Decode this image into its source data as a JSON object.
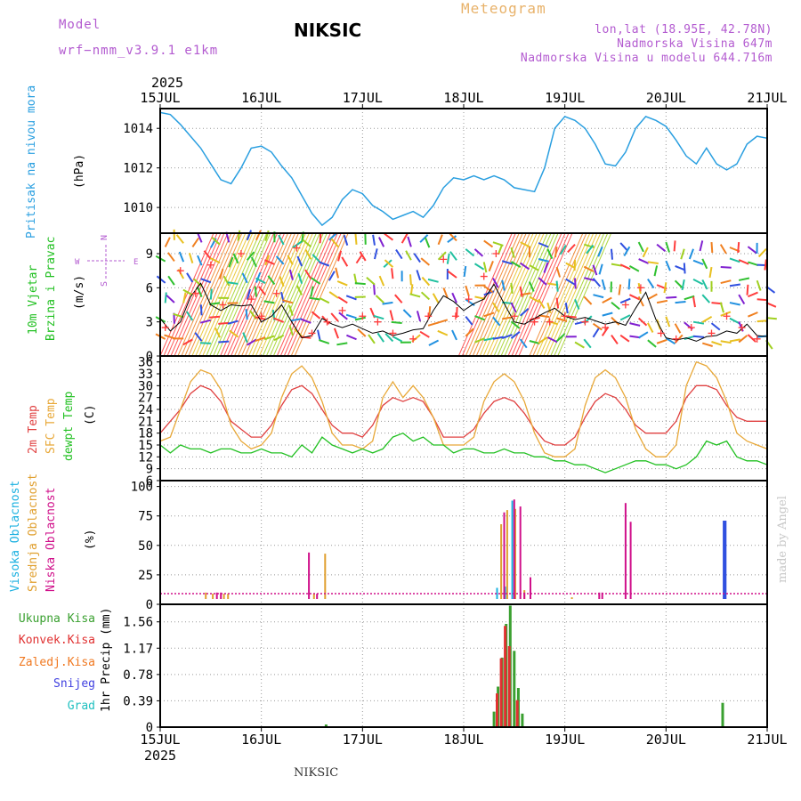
{
  "header": {
    "model_label": "Model",
    "model_run": "wrf−nmm_v3.9.1  e1km",
    "location": "NIKSIC",
    "chart_title": "Meteogram",
    "coords": "lon,lat (18.95E, 42.78N)",
    "elevation": "Nadmorska Visina 647m",
    "model_elevation": "Nadmorska Visina u modelu 644.716m",
    "year": "2025"
  },
  "footer": {
    "location": "NIKSIC",
    "credit": "made by Angel"
  },
  "colors": {
    "pressure": "#2a9fe0",
    "wind_speed": "#000000",
    "gust": "#ff3c3c",
    "temp_2m": "#e04040",
    "temp_sfc": "#e8a838",
    "temp_dewpt": "#22c022",
    "cloud_high": "#1ab0e0",
    "cloud_mid": "#e0a030",
    "cloud_low": "#d0108a",
    "precip_total": "#3aa030",
    "precip_conv": "#e03030",
    "precip_strat": "#f07820",
    "snow": "#4040e0",
    "hail": "#20c0c0"
  },
  "chart_data": [
    {
      "type": "line",
      "ylabel_left": "Pritisak na nivou mora",
      "unit": "(hPa)",
      "x_ticks": [
        "15JUL",
        "16JUL",
        "17JUL",
        "18JUL",
        "19JUL",
        "20JUL",
        "21JUL"
      ],
      "yticks": [
        1010,
        1012,
        1014
      ],
      "ylim": [
        1008.7,
        1015.0
      ],
      "series": [
        {
          "x": [
            0,
            0.1,
            0.2,
            0.3,
            0.4,
            0.5,
            0.6,
            0.7,
            0.8,
            0.9,
            1.0,
            1.1,
            1.2,
            1.3,
            1.4,
            1.5,
            1.6,
            1.7,
            1.8,
            1.9,
            2.0,
            2.1,
            2.2,
            2.3,
            2.4,
            2.5,
            2.6,
            2.7,
            2.8,
            2.9,
            3.0,
            3.1,
            3.2,
            3.3,
            3.4,
            3.5,
            3.6,
            3.7,
            3.8,
            3.9,
            4.0,
            4.1,
            4.2,
            4.3,
            4.4,
            4.5,
            4.6,
            4.7,
            4.8,
            4.9,
            5.0,
            5.1,
            5.2,
            5.3,
            5.4,
            5.5,
            5.6,
            5.7,
            5.8,
            5.9,
            6.0
          ],
          "values": [
            1014.8,
            1014.7,
            1014.2,
            1013.6,
            1013.0,
            1012.2,
            1011.4,
            1011.2,
            1012.0,
            1013.0,
            1013.1,
            1012.8,
            1012.1,
            1011.5,
            1010.6,
            1009.7,
            1009.1,
            1009.5,
            1010.4,
            1010.9,
            1010.7,
            1010.1,
            1009.8,
            1009.4,
            1009.6,
            1009.8,
            1009.5,
            1010.1,
            1011.0,
            1011.5,
            1011.4,
            1011.6,
            1011.4,
            1011.6,
            1011.4,
            1011.0,
            1010.9,
            1010.8,
            1012.0,
            1014.0,
            1014.6,
            1014.4,
            1014.0,
            1013.2,
            1012.2,
            1012.1,
            1012.8,
            1014.0,
            1014.6,
            1014.4,
            1014.1,
            1013.4,
            1012.6,
            1012.2,
            1013.0,
            1012.2,
            1011.9,
            1012.2,
            1013.2,
            1013.6,
            1013.5
          ]
        }
      ]
    },
    {
      "type": "line",
      "ylabel_left": "10m Vjetar Brzina i Pravac",
      "unit": "(m/s)",
      "compass": {
        "n": "N",
        "s": "S",
        "e": "E",
        "w": "W"
      },
      "yticks": [
        0,
        3,
        6,
        9
      ],
      "ylim": [
        0,
        10.8
      ],
      "series": [
        {
          "name": "speed",
          "x": [
            0,
            0.1,
            0.2,
            0.3,
            0.4,
            0.5,
            0.6,
            0.7,
            0.8,
            0.9,
            1.0,
            1.1,
            1.2,
            1.3,
            1.4,
            1.5,
            1.6,
            1.7,
            1.8,
            1.9,
            2.0,
            2.1,
            2.2,
            2.3,
            2.4,
            2.5,
            2.6,
            2.7,
            2.8,
            2.9,
            3.0,
            3.1,
            3.2,
            3.3,
            3.4,
            3.5,
            3.6,
            3.7,
            3.8,
            3.9,
            4.0,
            4.1,
            4.2,
            4.3,
            4.4,
            4.5,
            4.6,
            4.7,
            4.8,
            4.9,
            5.0,
            5.1,
            5.2,
            5.3,
            5.4,
            5.5,
            5.6,
            5.7,
            5.8,
            5.9,
            6.0
          ],
          "values": [
            3.3,
            2.2,
            3.0,
            5.2,
            6.4,
            4.5,
            4.0,
            4.5,
            4.4,
            4.5,
            3.0,
            3.5,
            4.5,
            3.0,
            1.6,
            1.8,
            3.3,
            2.8,
            2.5,
            2.8,
            2.4,
            2.0,
            2.2,
            1.8,
            2.0,
            2.3,
            2.4,
            4.0,
            5.3,
            4.8,
            4.0,
            4.6,
            5.0,
            6.3,
            4.6,
            3.0,
            2.8,
            3.3,
            3.8,
            4.2,
            3.5,
            3.2,
            3.4,
            3.1,
            2.8,
            3.0,
            2.7,
            4.2,
            5.6,
            3.2,
            1.6,
            1.4,
            1.6,
            1.3,
            1.7,
            1.8,
            2.2,
            2.0,
            2.8,
            1.8,
            1.7
          ]
        },
        {
          "name": "gusts",
          "x": [
            0.05,
            0.2,
            0.35,
            0.5,
            0.62,
            0.8,
            0.9,
            1.0,
            1.15,
            1.35,
            1.5,
            1.65,
            1.8,
            2.0,
            2.15,
            2.3,
            2.5,
            2.65,
            2.8,
            2.92,
            3.05,
            3.2,
            3.32,
            3.5,
            3.7,
            3.85,
            4.0,
            4.2,
            4.4,
            4.6,
            4.75,
            4.95,
            5.1,
            5.25,
            5.45,
            5.6,
            5.75,
            5.9
          ],
          "values": [
            2.5,
            7.5,
            5.5,
            8.0,
            4.5,
            9.0,
            5.0,
            3.5,
            5.5,
            9.5,
            2.0,
            3.0,
            4.0,
            3.5,
            3.0,
            2.0,
            1.5,
            3.5,
            8.5,
            3.5,
            5.0,
            7.0,
            9.0,
            3.5,
            3.0,
            3.0,
            3.5,
            3.0,
            2.5,
            4.5,
            6.0,
            2.0,
            1.5,
            2.5,
            2.0,
            3.5,
            2.5,
            1.5
          ]
        }
      ]
    },
    {
      "type": "line",
      "ylabel_left": [
        "2m Temp",
        "SFC Temp",
        "dewpt Temp"
      ],
      "unit": "(C)",
      "yticks": [
        6,
        9,
        12,
        15,
        18,
        21,
        24,
        27,
        30,
        33,
        36
      ],
      "ylim": [
        6,
        37.5
      ],
      "series": [
        {
          "name": "2m Temp",
          "x": [
            0,
            0.1,
            0.2,
            0.3,
            0.4,
            0.5,
            0.6,
            0.7,
            0.8,
            0.9,
            1.0,
            1.1,
            1.2,
            1.3,
            1.4,
            1.5,
            1.6,
            1.7,
            1.8,
            1.9,
            2.0,
            2.1,
            2.2,
            2.3,
            2.4,
            2.5,
            2.6,
            2.7,
            2.8,
            2.9,
            3.0,
            3.1,
            3.2,
            3.3,
            3.4,
            3.5,
            3.6,
            3.7,
            3.8,
            3.9,
            4.0,
            4.1,
            4.2,
            4.3,
            4.4,
            4.5,
            4.6,
            4.7,
            4.8,
            4.9,
            5.0,
            5.1,
            5.2,
            5.3,
            5.4,
            5.5,
            5.6,
            5.7,
            5.8,
            5.9,
            6.0
          ],
          "values": [
            18,
            21,
            24,
            28,
            30,
            29,
            26,
            21,
            19,
            17,
            17,
            20,
            25,
            29,
            30,
            28,
            24,
            20,
            18,
            18,
            17,
            20,
            25,
            27,
            26,
            27,
            26,
            22,
            17,
            17,
            17,
            19,
            23,
            26,
            27,
            26,
            23,
            19,
            16,
            15,
            15,
            17,
            22,
            26,
            28,
            27,
            24,
            20,
            18,
            18,
            18,
            21,
            27,
            30,
            30,
            29,
            25,
            22,
            21,
            21,
            21
          ]
        },
        {
          "name": "SFC Temp",
          "x": [
            0,
            0.1,
            0.2,
            0.3,
            0.4,
            0.5,
            0.6,
            0.7,
            0.8,
            0.9,
            1.0,
            1.1,
            1.2,
            1.3,
            1.4,
            1.5,
            1.6,
            1.7,
            1.8,
            1.9,
            2.0,
            2.1,
            2.2,
            2.3,
            2.4,
            2.5,
            2.6,
            2.7,
            2.8,
            2.9,
            3.0,
            3.1,
            3.2,
            3.3,
            3.4,
            3.5,
            3.6,
            3.7,
            3.8,
            3.9,
            4.0,
            4.1,
            4.2,
            4.3,
            4.4,
            4.5,
            4.6,
            4.7,
            4.8,
            4.9,
            5.0,
            5.1,
            5.2,
            5.3,
            5.4,
            5.5,
            5.6,
            5.7,
            5.8,
            5.9,
            6.0
          ],
          "values": [
            16,
            17,
            24,
            31,
            34,
            33,
            29,
            20,
            16,
            14,
            15,
            18,
            27,
            33,
            35,
            32,
            26,
            18,
            15,
            15,
            14,
            16,
            27,
            31,
            27,
            30,
            27,
            22,
            15,
            15,
            15,
            17,
            26,
            31,
            33,
            31,
            26,
            18,
            13,
            12,
            12,
            14,
            25,
            32,
            34,
            32,
            27,
            19,
            14,
            12,
            12,
            15,
            30,
            36,
            35,
            32,
            26,
            18,
            16,
            15,
            14
          ]
        },
        {
          "name": "dewpt Temp",
          "x": [
            0,
            0.1,
            0.2,
            0.3,
            0.4,
            0.5,
            0.6,
            0.7,
            0.8,
            0.9,
            1.0,
            1.1,
            1.2,
            1.3,
            1.4,
            1.5,
            1.6,
            1.7,
            1.8,
            1.9,
            2.0,
            2.1,
            2.2,
            2.3,
            2.4,
            2.5,
            2.6,
            2.7,
            2.8,
            2.9,
            3.0,
            3.1,
            3.2,
            3.3,
            3.4,
            3.5,
            3.6,
            3.7,
            3.8,
            3.9,
            4.0,
            4.1,
            4.2,
            4.3,
            4.4,
            4.5,
            4.6,
            4.7,
            4.8,
            4.9,
            5.0,
            5.1,
            5.2,
            5.3,
            5.4,
            5.5,
            5.6,
            5.7,
            5.8,
            5.9,
            6.0
          ],
          "values": [
            15,
            13,
            15,
            14,
            14,
            13,
            14,
            14,
            13,
            13,
            14,
            13,
            13,
            12,
            15,
            13,
            17,
            15,
            14,
            13,
            14,
            13,
            14,
            17,
            18,
            16,
            17,
            15,
            15,
            13,
            14,
            14,
            13,
            13,
            14,
            13,
            13,
            12,
            12,
            11,
            11,
            10,
            10,
            9,
            8,
            9,
            10,
            11,
            11,
            10,
            10,
            9,
            10,
            12,
            16,
            15,
            16,
            12,
            11,
            11,
            10
          ]
        }
      ]
    },
    {
      "type": "bar",
      "ylabel_left": [
        "Visoka Oblacnost",
        "Srednja Oblacnost",
        "Niska Oblacnost"
      ],
      "unit": "(%)",
      "yticks": [
        0,
        25,
        50,
        75,
        100
      ],
      "ylim": [
        0,
        105
      ],
      "series": [
        {
          "name": "Visoka Oblacnost",
          "bars": [
            [
              3.25,
              2
            ],
            [
              3.33,
              14
            ],
            [
              3.41,
              15
            ],
            [
              3.48,
              88
            ],
            [
              3.55,
              4
            ],
            [
              4.58,
              1
            ]
          ]
        },
        {
          "name": "Srednja Oblacnost",
          "bars": [
            [
              0.45,
              10
            ],
            [
              0.52,
              9
            ],
            [
              0.63,
              9
            ],
            [
              0.67,
              9
            ],
            [
              1.52,
              9
            ],
            [
              1.63,
              43
            ],
            [
              3.37,
              68
            ],
            [
              3.43,
              80
            ],
            [
              3.51,
              81
            ],
            [
              3.6,
              12
            ],
            [
              4.07,
              6
            ],
            [
              4.66,
              2
            ]
          ]
        },
        {
          "name": "Niska Oblacnost",
          "bars": [
            [
              0.56,
              10
            ],
            [
              0.6,
              10
            ],
            [
              1.47,
              44
            ],
            [
              1.55,
              9
            ],
            [
              3.4,
              78
            ],
            [
              3.5,
              89
            ],
            [
              3.56,
              83
            ],
            [
              3.66,
              23
            ],
            [
              3.6,
              10
            ],
            [
              4.34,
              10
            ],
            [
              4.37,
              10
            ],
            [
              4.6,
              86
            ],
            [
              4.65,
              70
            ]
          ]
        },
        {
          "name": "blue",
          "bars": [
            [
              5.57,
              71
            ],
            [
              5.58,
              71
            ]
          ]
        }
      ]
    },
    {
      "type": "bar",
      "ylabel_left": [
        "Ukupna Kisa",
        "Konvek.Kisa",
        "Zaledj.Kisa",
        "Snijeg",
        "Grad"
      ],
      "unit": "1hr Precip (mm)",
      "yticks": [
        0,
        0.39,
        0.78,
        1.17,
        1.56
      ],
      "ylim": [
        0,
        1.82
      ],
      "series": [
        {
          "name": "Ukupna Kisa",
          "bars": [
            [
              3.3,
              0.23
            ],
            [
              3.34,
              0.6
            ],
            [
              3.38,
              1.03
            ],
            [
              3.42,
              1.53
            ],
            [
              3.46,
              1.8
            ],
            [
              3.5,
              1.13
            ],
            [
              3.54,
              0.58
            ],
            [
              3.58,
              0.2
            ],
            [
              1.64,
              0.04
            ],
            [
              5.56,
              0.36
            ]
          ]
        },
        {
          "name": "Konvek.Kisa",
          "bars": [
            [
              3.33,
              0.5
            ],
            [
              3.37,
              1.02
            ],
            [
              3.41,
              1.5
            ],
            [
              3.45,
              1.2
            ],
            [
              3.53,
              0.4
            ]
          ]
        }
      ]
    }
  ]
}
